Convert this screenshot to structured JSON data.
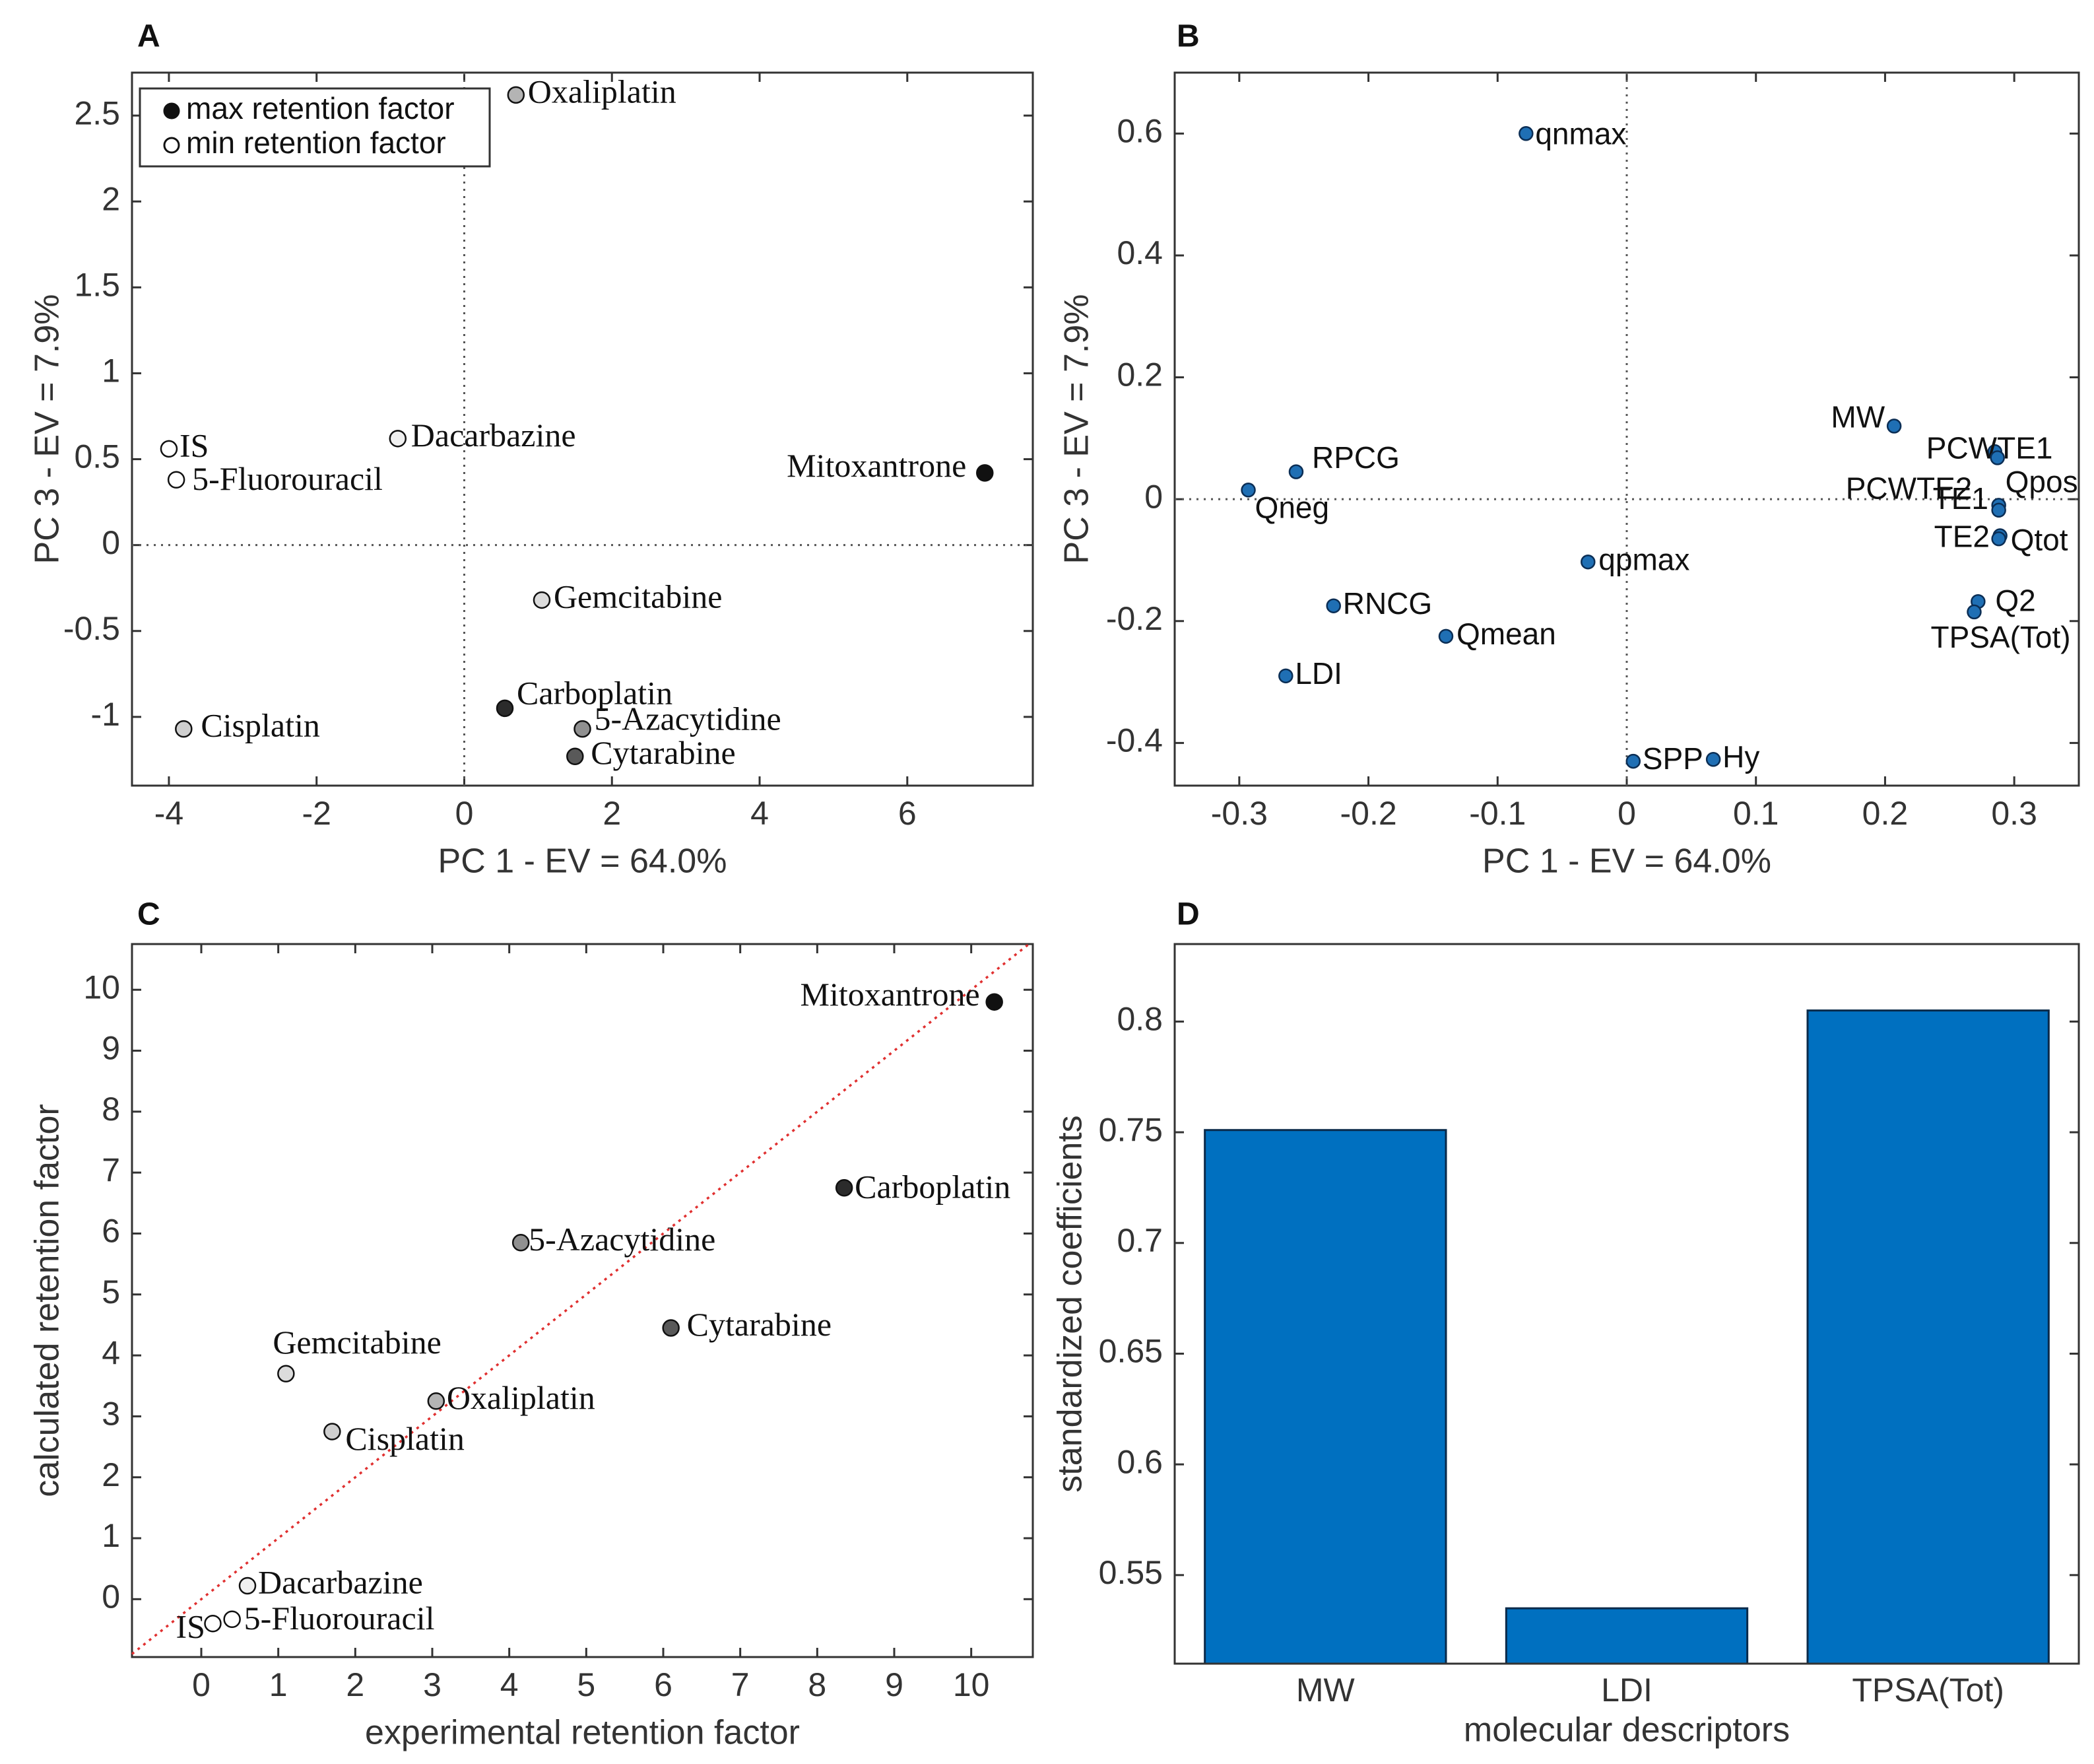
{
  "chart_data": [
    {
      "panel": "A",
      "type": "scatter",
      "xlabel": "PC 1 - EV = 64.0%",
      "ylabel": "PC 3 - EV = 7.9%",
      "xlim": [
        -4.5,
        7.7
      ],
      "ylim": [
        -1.4,
        2.75
      ],
      "xticks": [
        -4,
        -2,
        0,
        2,
        4,
        6
      ],
      "yticks": [
        -1,
        -0.5,
        0,
        0.5,
        1,
        1.5,
        2,
        2.5
      ],
      "legend": [
        {
          "label": "max retention factor",
          "color": "#111111"
        },
        {
          "label": "min retention factor",
          "color": "#ffffff"
        }
      ],
      "points": [
        {
          "label": "Oxaliplatin",
          "x": 0.7,
          "y": 2.62,
          "color": "#b4b4b4"
        },
        {
          "label": "IS",
          "x": -4.0,
          "y": 0.56,
          "color": "#ffffff"
        },
        {
          "label": "5-Fluorouracil",
          "x": -3.9,
          "y": 0.38,
          "color": "#ffffff"
        },
        {
          "label": "Dacarbazine",
          "x": -0.9,
          "y": 0.62,
          "color": "#f0f0f0"
        },
        {
          "label": "Mitoxantrone",
          "x": 7.05,
          "y": 0.42,
          "color": "#111111"
        },
        {
          "label": "Gemcitabine",
          "x": 1.05,
          "y": -0.32,
          "color": "#dcdcdc"
        },
        {
          "label": "Carboplatin",
          "x": 0.55,
          "y": -0.95,
          "color": "#2b2b2b"
        },
        {
          "label": "5-Azacytidine",
          "x": 1.6,
          "y": -1.07,
          "color": "#909090"
        },
        {
          "label": "Cytarabine",
          "x": 1.5,
          "y": -1.23,
          "color": "#595959"
        },
        {
          "label": "Cisplatin",
          "x": -3.8,
          "y": -1.07,
          "color": "#cfcfcf"
        }
      ]
    },
    {
      "panel": "B",
      "type": "scatter",
      "xlabel": "PC 1 - EV = 64.0%",
      "ylabel": "PC 3 - EV = 7.9%",
      "xlim": [
        -0.35,
        0.35
      ],
      "ylim": [
        -0.47,
        0.7
      ],
      "xticks": [
        -0.3,
        -0.2,
        -0.1,
        0,
        0.1,
        0.2,
        0.3
      ],
      "yticks": [
        -0.4,
        -0.2,
        0,
        0.2,
        0.4,
        0.6
      ],
      "points": [
        {
          "label": "qnmax",
          "x": -0.078,
          "y": 0.6
        },
        {
          "label": "MW",
          "x": 0.207,
          "y": 0.12
        },
        {
          "label": "PCWTE1",
          "x": 0.285,
          "y": 0.078
        },
        {
          "label": "PCWTE2",
          "x": 0.287,
          "y": 0.068
        },
        {
          "label": "Qpos",
          "x": 0.288,
          "y": -0.01
        },
        {
          "label": "TE1",
          "x": 0.288,
          "y": -0.018
        },
        {
          "label": "Qtot",
          "x": 0.289,
          "y": -0.06
        },
        {
          "label": "TE2",
          "x": 0.288,
          "y": -0.065
        },
        {
          "label": "RPCG",
          "x": -0.256,
          "y": 0.045
        },
        {
          "label": "Qneg",
          "x": -0.293,
          "y": 0.015
        },
        {
          "label": "qpmax",
          "x": -0.03,
          "y": -0.103
        },
        {
          "label": "RNCG",
          "x": -0.227,
          "y": -0.175
        },
        {
          "label": "Qmean",
          "x": -0.14,
          "y": -0.225
        },
        {
          "label": "LDI",
          "x": -0.264,
          "y": -0.29
        },
        {
          "label": "Q2",
          "x": 0.272,
          "y": -0.168
        },
        {
          "label": "TPSA(Tot)",
          "x": 0.269,
          "y": -0.185
        },
        {
          "label": "SPP",
          "x": 0.005,
          "y": -0.43
        },
        {
          "label": "Hy",
          "x": 0.067,
          "y": -0.427
        }
      ]
    },
    {
      "panel": "C",
      "type": "scatter",
      "xlabel": "experimental retention factor",
      "ylabel": "calculated retention factor",
      "xlim": [
        -0.9,
        10.8
      ],
      "ylim": [
        -0.95,
        10.75
      ],
      "xticks": [
        0,
        1,
        2,
        3,
        4,
        5,
        6,
        7,
        8,
        9,
        10
      ],
      "yticks": [
        0,
        1,
        2,
        3,
        4,
        5,
        6,
        7,
        8,
        9,
        10
      ],
      "identity_line": true,
      "points": [
        {
          "label": "Mitoxantrone",
          "x": 10.3,
          "y": 9.8,
          "color": "#111111"
        },
        {
          "label": "Carboplatin",
          "x": 8.35,
          "y": 6.75,
          "color": "#2b2b2b"
        },
        {
          "label": "5-Azacytidine",
          "x": 4.15,
          "y": 5.85,
          "color": "#909090"
        },
        {
          "label": "Cytarabine",
          "x": 6.1,
          "y": 4.45,
          "color": "#595959"
        },
        {
          "label": "Gemcitabine",
          "x": 1.1,
          "y": 3.7,
          "color": "#dcdcdc"
        },
        {
          "label": "Oxaliplatin",
          "x": 3.05,
          "y": 3.25,
          "color": "#b4b4b4"
        },
        {
          "label": "Cisplatin",
          "x": 1.7,
          "y": 2.75,
          "color": "#cfcfcf"
        },
        {
          "label": "Dacarbazine",
          "x": 0.6,
          "y": 0.22,
          "color": "#f0f0f0"
        },
        {
          "label": "IS",
          "x": 0.15,
          "y": -0.4,
          "color": "#ffffff"
        },
        {
          "label": "5-Fluorouracil",
          "x": 0.4,
          "y": -0.33,
          "color": "#ffffff"
        }
      ]
    },
    {
      "panel": "D",
      "type": "bar",
      "xlabel": "molecular descriptors",
      "ylabel": "standardized coefficients",
      "ylim": [
        0.51,
        0.835
      ],
      "yticks": [
        0.55,
        0.6,
        0.65,
        0.7,
        0.75,
        0.8
      ],
      "categories": [
        "MW",
        "LDI",
        "TPSA(Tot)"
      ],
      "values": [
        0.751,
        0.535,
        0.805
      ],
      "bar_color": "#0070c0"
    }
  ],
  "colors": {
    "blue_marker": "#1f6fb4",
    "bar": "#0070c0",
    "identity_line": "#e03030"
  }
}
